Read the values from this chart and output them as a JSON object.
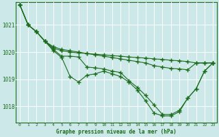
{
  "title": "Graphe pression niveau de la mer (hPa)",
  "bg_color": "#cce8e8",
  "grid_color": "#ffffff",
  "line_color": "#1a6b1a",
  "marker_color": "#1a6b1a",
  "xlim": [
    -0.5,
    23.5
  ],
  "ylim": [
    1017.4,
    1021.85
  ],
  "yticks": [
    1018,
    1019,
    1020,
    1021
  ],
  "xticks": [
    0,
    1,
    2,
    3,
    4,
    5,
    6,
    7,
    8,
    9,
    10,
    11,
    12,
    13,
    14,
    15,
    16,
    17,
    18,
    19,
    20,
    21,
    22,
    23
  ],
  "series": [
    {
      "x": [
        0,
        1,
        2,
        3,
        4,
        5,
        6,
        7,
        8,
        9,
        10,
        11,
        12,
        13,
        14,
        15,
        16,
        17,
        18,
        19,
        20,
        21,
        22,
        23
      ],
      "y": [
        1021.75,
        1021.0,
        1020.75,
        1020.4,
        1020.15,
        1020.05,
        1020.0,
        1019.97,
        1019.95,
        1019.92,
        1019.9,
        1019.87,
        1019.85,
        1019.82,
        1019.8,
        1019.78,
        1019.75,
        1019.73,
        1019.7,
        1019.68,
        1019.65,
        1019.6,
        1019.6,
        1019.6
      ]
    },
    {
      "x": [
        0,
        1,
        2,
        3,
        4,
        5,
        6,
        7,
        8,
        9,
        10,
        11,
        12,
        13,
        14,
        15,
        16,
        17,
        18,
        19,
        20,
        21,
        22,
        23
      ],
      "y": [
        1021.75,
        1021.0,
        1020.75,
        1020.4,
        1020.2,
        1020.1,
        1020.05,
        1020.0,
        1019.95,
        1019.9,
        1019.85,
        1019.8,
        1019.75,
        1019.7,
        1019.65,
        1019.6,
        1019.5,
        1019.45,
        1019.4,
        1019.38,
        1019.35,
        1019.6,
        1019.6,
        1019.6
      ]
    },
    {
      "x": [
        0,
        1,
        2,
        3,
        4,
        5,
        6,
        7,
        8,
        9,
        10,
        11,
        12,
        13,
        14,
        15,
        16,
        17,
        18,
        19,
        20,
        21,
        22,
        23
      ],
      "y": [
        1021.75,
        1021.0,
        1020.75,
        1020.4,
        1020.1,
        1019.85,
        1019.85,
        1019.82,
        1019.45,
        1019.42,
        1019.38,
        1019.3,
        1019.25,
        1018.95,
        1018.7,
        1018.4,
        1018.05,
        1017.7,
        1017.7,
        1017.85,
        1018.3,
        1018.65,
        1019.3,
        1019.6
      ]
    },
    {
      "x": [
        0,
        1,
        2,
        3,
        4,
        5,
        6,
        7,
        8,
        9,
        10,
        11,
        12,
        13,
        14,
        15,
        16,
        17,
        18,
        19,
        20,
        21,
        22,
        23
      ],
      "y": [
        1021.75,
        1021.0,
        1020.75,
        1020.4,
        1020.05,
        1019.8,
        1019.1,
        1018.9,
        1019.15,
        1019.2,
        1019.3,
        1019.2,
        1019.1,
        1018.9,
        1018.6,
        1018.2,
        1017.75,
        1017.65,
        1017.65,
        1017.8,
        1018.3,
        1018.65,
        1019.3,
        1019.6
      ]
    }
  ]
}
